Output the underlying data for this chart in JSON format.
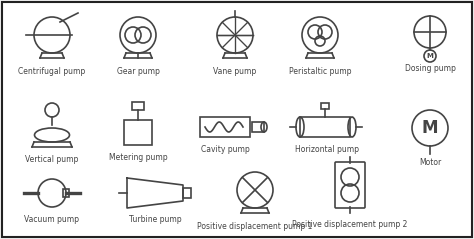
{
  "title": "",
  "background_color": "#f0f0f0",
  "border_color": "#222222",
  "symbol_color": "#444444",
  "lw": 1.2,
  "labels": {
    "centrifugal": "Centrifugal pump",
    "gear": "Gear pump",
    "vane": "Vane pump",
    "peristaltic": "Peristaltic pump",
    "dosing": "Dosing pump",
    "vertical": "Vertical pump",
    "metering": "Metering pump",
    "cavity": "Cavity pump",
    "horizontal": "Horizontal pump",
    "motor": "Motor",
    "vacuum": "Vacuum pump",
    "turbine": "Turbine pump",
    "posdisp1": "Positive displacement pump 1",
    "posdisp2": "Positive displacement pump 2"
  }
}
